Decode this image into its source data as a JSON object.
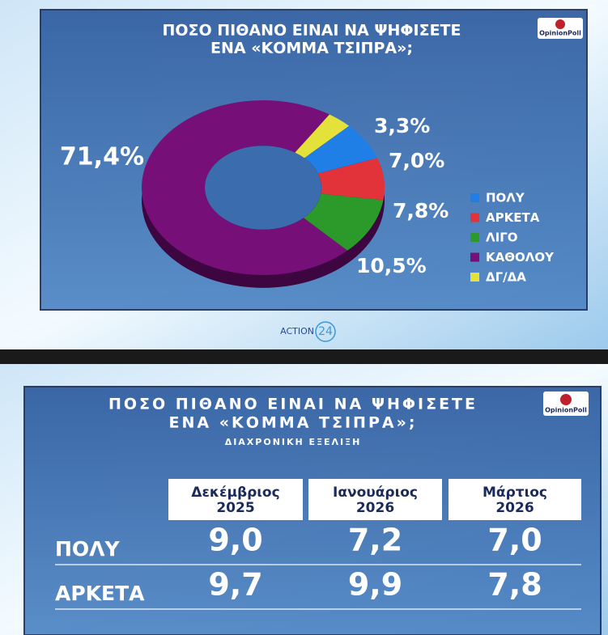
{
  "chart_data": {
    "type": "pie",
    "donut": true,
    "title": [
      "ΠΟΣΟ ΠΙΘΑΝΟ ΕΙΝΑΙ ΝΑ ΨΗΦΙΣΕΤΕ",
      "ΕΝΑ «ΚΟΜΜΑ ΤΣΙΠΡΑ»;"
    ],
    "categories": [
      "ΠΟΛΥ",
      "ΑΡΚΕΤΑ",
      "ΛΙΓΟ",
      "ΚΑΘΟΛΟΥ",
      "ΔΓ/ΔΑ"
    ],
    "values": [
      7.0,
      7.8,
      10.5,
      71.4,
      3.3
    ],
    "value_labels": [
      "7,0%",
      "7,8%",
      "10,5%",
      "71,4%",
      "3,3%"
    ],
    "colors": [
      "#1f7fe6",
      "#e2323a",
      "#2b9a2b",
      "#760f78",
      "#e4e23a"
    ],
    "legend": "right"
  },
  "poll_logo": "OpinionPoll",
  "channel_logo": {
    "name": "ACTION",
    "number": "24"
  },
  "table": {
    "title": [
      "ΠΟΣΟ ΠΙΘΑΝΟ ΕΙΝΑΙ ΝΑ ΨΗΦΙΣΕΤΕ",
      "ΕΝΑ «ΚΟΜΜΑ ΤΣΙΠΡΑ»;"
    ],
    "subtitle": "ΔΙΑΧΡΟΝΙΚΗ ΕΞΕΛΙΞΗ",
    "columns": [
      {
        "month": "Δεκέμβριος",
        "year": "2025"
      },
      {
        "month": "Ιανουάριος",
        "year": "2026"
      },
      {
        "month": "Μάρτιος",
        "year": "2026"
      }
    ],
    "rows": [
      {
        "label": "ΠΟΛΥ",
        "values": [
          "9,0",
          "7,2",
          "7,0"
        ]
      },
      {
        "label": "ΑΡΚΕΤΑ",
        "values": [
          "9,7",
          "9,9",
          "7,8"
        ]
      }
    ]
  }
}
